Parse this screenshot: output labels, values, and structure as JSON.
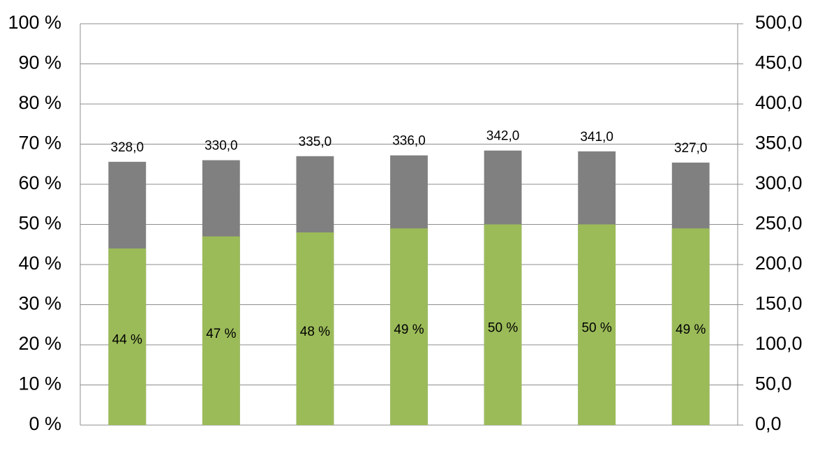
{
  "chart_data": {
    "type": "bar",
    "categories": [
      null,
      null,
      null,
      null,
      null,
      null,
      null
    ],
    "series": [
      {
        "color": "#808080",
        "axis": "y2",
        "values": [
          328,
          330,
          335,
          336,
          342,
          341,
          327
        ],
        "value_labels": [
          "328,0",
          "330,0",
          "335,0",
          "336,0",
          "342,0",
          "341,0",
          "327,0"
        ]
      },
      {
        "color": "#9bbb59",
        "values": [
          44,
          47,
          48,
          49,
          50,
          50,
          49
        ],
        "value_labels": [
          "44 %",
          "47 %",
          "48 %",
          "49 %",
          "50 %",
          "50 %",
          "49 %"
        ]
      }
    ],
    "ylim": [
      0,
      100
    ],
    "yticks": [
      {
        "value": 0,
        "label": "0 %"
      },
      {
        "value": 10,
        "label": "10 %"
      },
      {
        "value": 20,
        "label": "20 %"
      },
      {
        "value": 30,
        "label": "30 %"
      },
      {
        "value": 40,
        "label": "40 %"
      },
      {
        "value": 50,
        "label": "50 %"
      },
      {
        "value": 60,
        "label": "60 %"
      },
      {
        "value": 70,
        "label": "70 %"
      },
      {
        "value": 80,
        "label": "80 %"
      },
      {
        "value": 90,
        "label": "90 %"
      },
      {
        "value": 100,
        "label": "100 %"
      }
    ],
    "y2lim": [
      0,
      500
    ],
    "y2ticks": [
      {
        "value": 0,
        "label": "0,0"
      },
      {
        "value": 50,
        "label": "50,0"
      },
      {
        "value": 100,
        "label": "100,0"
      },
      {
        "value": 150,
        "label": "150,0"
      },
      {
        "value": 200,
        "label": "200,0"
      },
      {
        "value": 250,
        "label": "250,0"
      },
      {
        "value": 300,
        "label": "300,0"
      },
      {
        "value": 350,
        "label": "350,0"
      },
      {
        "value": 400,
        "label": "400,0"
      },
      {
        "value": 450,
        "label": "450,0"
      },
      {
        "value": 500,
        "label": "500,0"
      }
    ],
    "grid": true
  }
}
